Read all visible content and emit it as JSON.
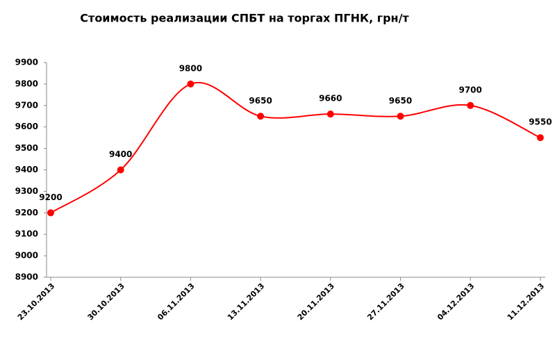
{
  "chart_data": {
    "type": "line",
    "title": "Стоимость реализации СПБТ на торгах ПГНК, грн/т",
    "categories": [
      "23.10.2013",
      "30.10.2013",
      "06.11.2013",
      "13.11.2013",
      "20.11.2013",
      "27.11.2013",
      "04.12.2013",
      "11.12.2013"
    ],
    "values": [
      9200,
      9400,
      9800,
      9650,
      9660,
      9650,
      9700,
      9550
    ],
    "color": "#ff0000",
    "smooth": true,
    "data_labels": true,
    "ylim": [
      8900,
      9900
    ],
    "yticks": [
      8900,
      9000,
      9100,
      9200,
      9300,
      9400,
      9500,
      9600,
      9700,
      9800,
      9900
    ],
    "grid": false
  }
}
